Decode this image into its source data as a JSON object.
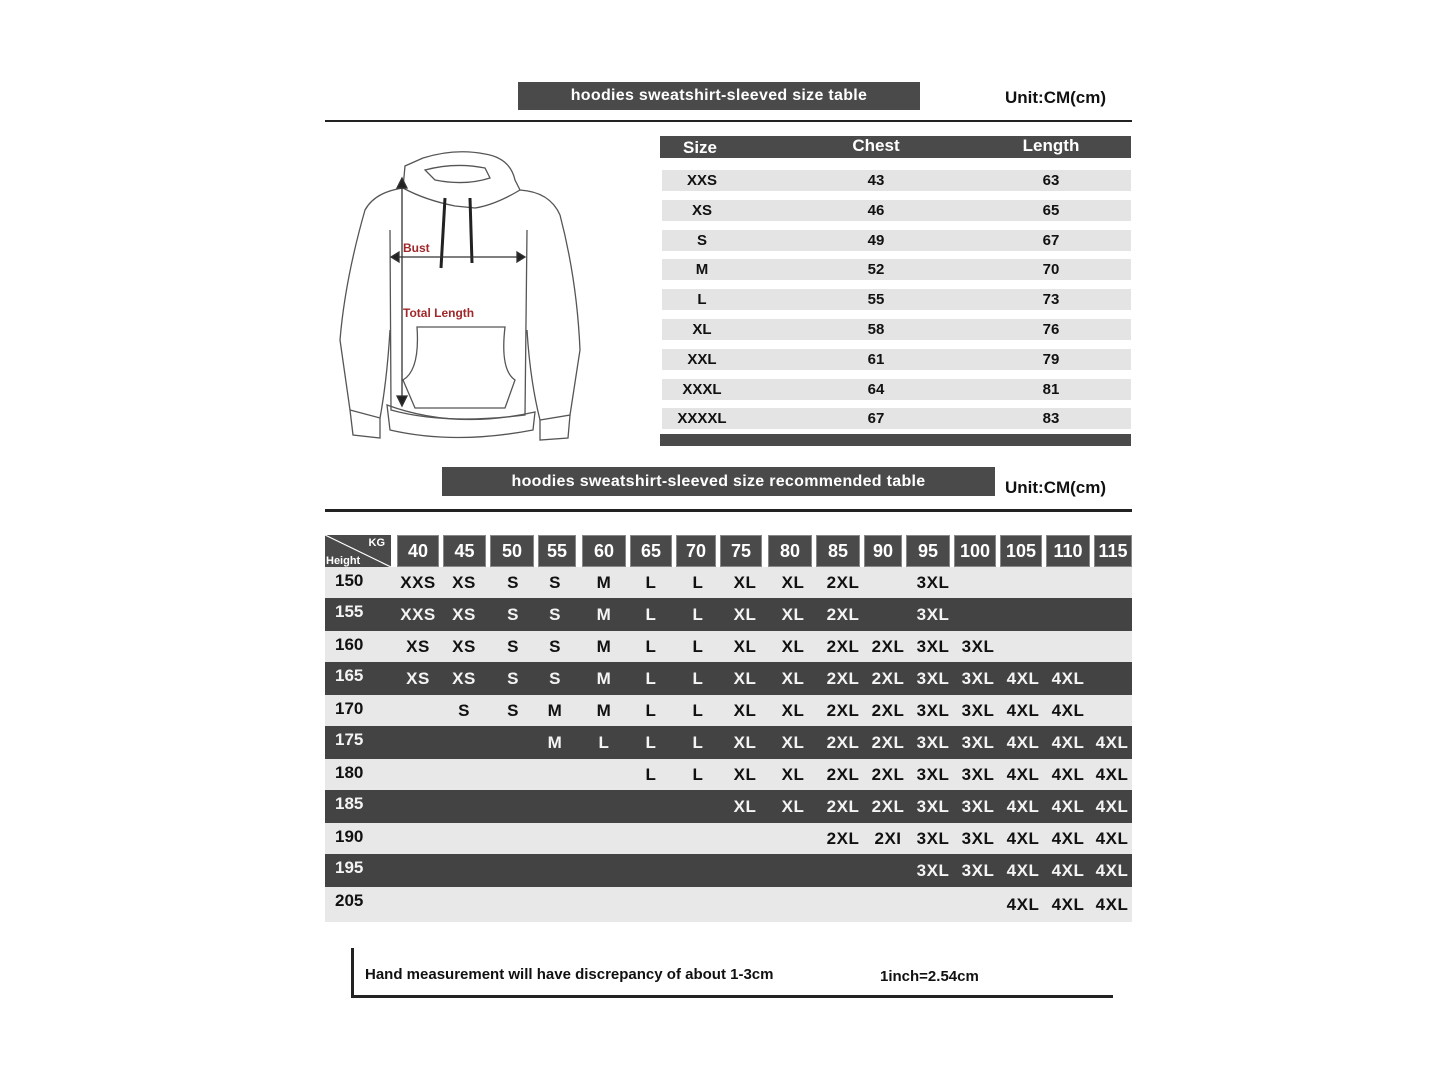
{
  "size_table": {
    "title": "hoodies sweatshirt-sleeved size  table",
    "unit": "Unit:CM(cm)",
    "columns": [
      "Size",
      "Chest",
      "Length"
    ],
    "rows": [
      [
        "XXS",
        "43",
        "63"
      ],
      [
        "XS",
        "46",
        "65"
      ],
      [
        "S",
        "49",
        "67"
      ],
      [
        "M",
        "52",
        "70"
      ],
      [
        "L",
        "55",
        "73"
      ],
      [
        "XL",
        "58",
        "76"
      ],
      [
        "XXL",
        "61",
        "79"
      ],
      [
        "XXXL",
        "64",
        "81"
      ],
      [
        "XXXXL",
        "67",
        "83"
      ]
    ]
  },
  "diagram": {
    "bust_label": "Bust",
    "length_label": "Total Length",
    "label_color": "#a0282a"
  },
  "recommended_table": {
    "title": "hoodies sweatshirt-sleeved size recommended table",
    "unit": "Unit:CM(cm)",
    "corner_kg": "KG",
    "corner_height": "Height",
    "weights": [
      "40",
      "45",
      "50",
      "55",
      "60",
      "65",
      "70",
      "75",
      "80",
      "85",
      "90",
      "95",
      "100",
      "105",
      "110",
      "115"
    ],
    "rows": [
      {
        "height": "150",
        "sizes": [
          "XXS",
          "XS",
          "S",
          "S",
          "M",
          "L",
          "L",
          "XL",
          "XL",
          "2XL",
          "",
          "3XL",
          "",
          "",
          "",
          ""
        ]
      },
      {
        "height": "155",
        "sizes": [
          "XXS",
          "XS",
          "S",
          "S",
          "M",
          "L",
          "L",
          "XL",
          "XL",
          "2XL",
          "",
          "3XL",
          "",
          "",
          "",
          ""
        ]
      },
      {
        "height": "160",
        "sizes": [
          "XS",
          "XS",
          "S",
          "S",
          "M",
          "L",
          "L",
          "XL",
          "XL",
          "2XL",
          "2XL",
          "3XL",
          "3XL",
          "",
          "",
          ""
        ]
      },
      {
        "height": "165",
        "sizes": [
          "XS",
          "XS",
          "S",
          "S",
          "M",
          "L",
          "L",
          "XL",
          "XL",
          "2XL",
          "2XL",
          "3XL",
          "3XL",
          "4XL",
          "4XL",
          ""
        ]
      },
      {
        "height": "170",
        "sizes": [
          "",
          "S",
          "S",
          "M",
          "M",
          "L",
          "L",
          "XL",
          "XL",
          "2XL",
          "2XL",
          "3XL",
          "3XL",
          "4XL",
          "4XL",
          ""
        ]
      },
      {
        "height": "175",
        "sizes": [
          "",
          "",
          "",
          "M",
          "L",
          "L",
          "L",
          "XL",
          "XL",
          "2XL",
          "2XL",
          "3XL",
          "3XL",
          "4XL",
          "4XL",
          "4XL"
        ]
      },
      {
        "height": "180",
        "sizes": [
          "",
          "",
          "",
          "",
          "",
          "L",
          "L",
          "XL",
          "XL",
          "2XL",
          "2XL",
          "3XL",
          "3XL",
          "4XL",
          "4XL",
          "4XL"
        ]
      },
      {
        "height": "185",
        "sizes": [
          "",
          "",
          "",
          "",
          "",
          "",
          "",
          "XL",
          "XL",
          "2XL",
          "2XL",
          "3XL",
          "3XL",
          "4XL",
          "4XL",
          "4XL"
        ]
      },
      {
        "height": "190",
        "sizes": [
          "",
          "",
          "",
          "",
          "",
          "",
          "",
          "",
          "",
          "2XL",
          "2XI",
          "3XL",
          "3XL",
          "4XL",
          "4XL",
          "4XL"
        ]
      },
      {
        "height": "195",
        "sizes": [
          "",
          "",
          "",
          "",
          "",
          "",
          "",
          "",
          "",
          "",
          "",
          "3XL",
          "3XL",
          "4XL",
          "4XL",
          "4XL"
        ]
      },
      {
        "height": "205",
        "sizes": [
          "",
          "",
          "",
          "",
          "",
          "",
          "",
          "",
          "",
          "",
          "",
          "",
          "",
          "4XL",
          "4XL",
          "4XL"
        ]
      }
    ]
  },
  "footer": {
    "note": "Hand measurement will have discrepancy of about  1-3cm",
    "conversion": "1inch=2.54cm"
  }
}
